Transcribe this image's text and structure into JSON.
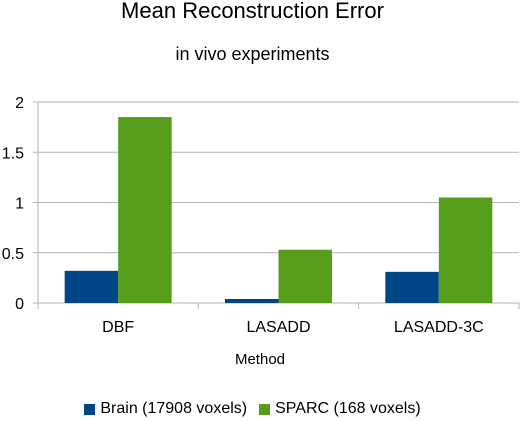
{
  "chart_data": {
    "type": "bar",
    "title": "Mean Reconstruction Error",
    "subtitle": "in vivo experiments",
    "xlabel": "Method",
    "ylabel": "",
    "categories": [
      "DBF",
      "LASADD",
      "LASADD-3C"
    ],
    "series": [
      {
        "name": "Brain (17908 voxels)",
        "color": "#004586",
        "values": [
          0.32,
          0.04,
          0.31
        ]
      },
      {
        "name": "SPARC (168 voxels)",
        "color": "#579d1c",
        "values": [
          1.85,
          0.53,
          1.05
        ]
      }
    ],
    "ylim": [
      0,
      2
    ],
    "yticks": [
      "0",
      "0.5",
      "1",
      "1.5",
      "2"
    ],
    "grid": true,
    "legend_position": "bottom"
  }
}
